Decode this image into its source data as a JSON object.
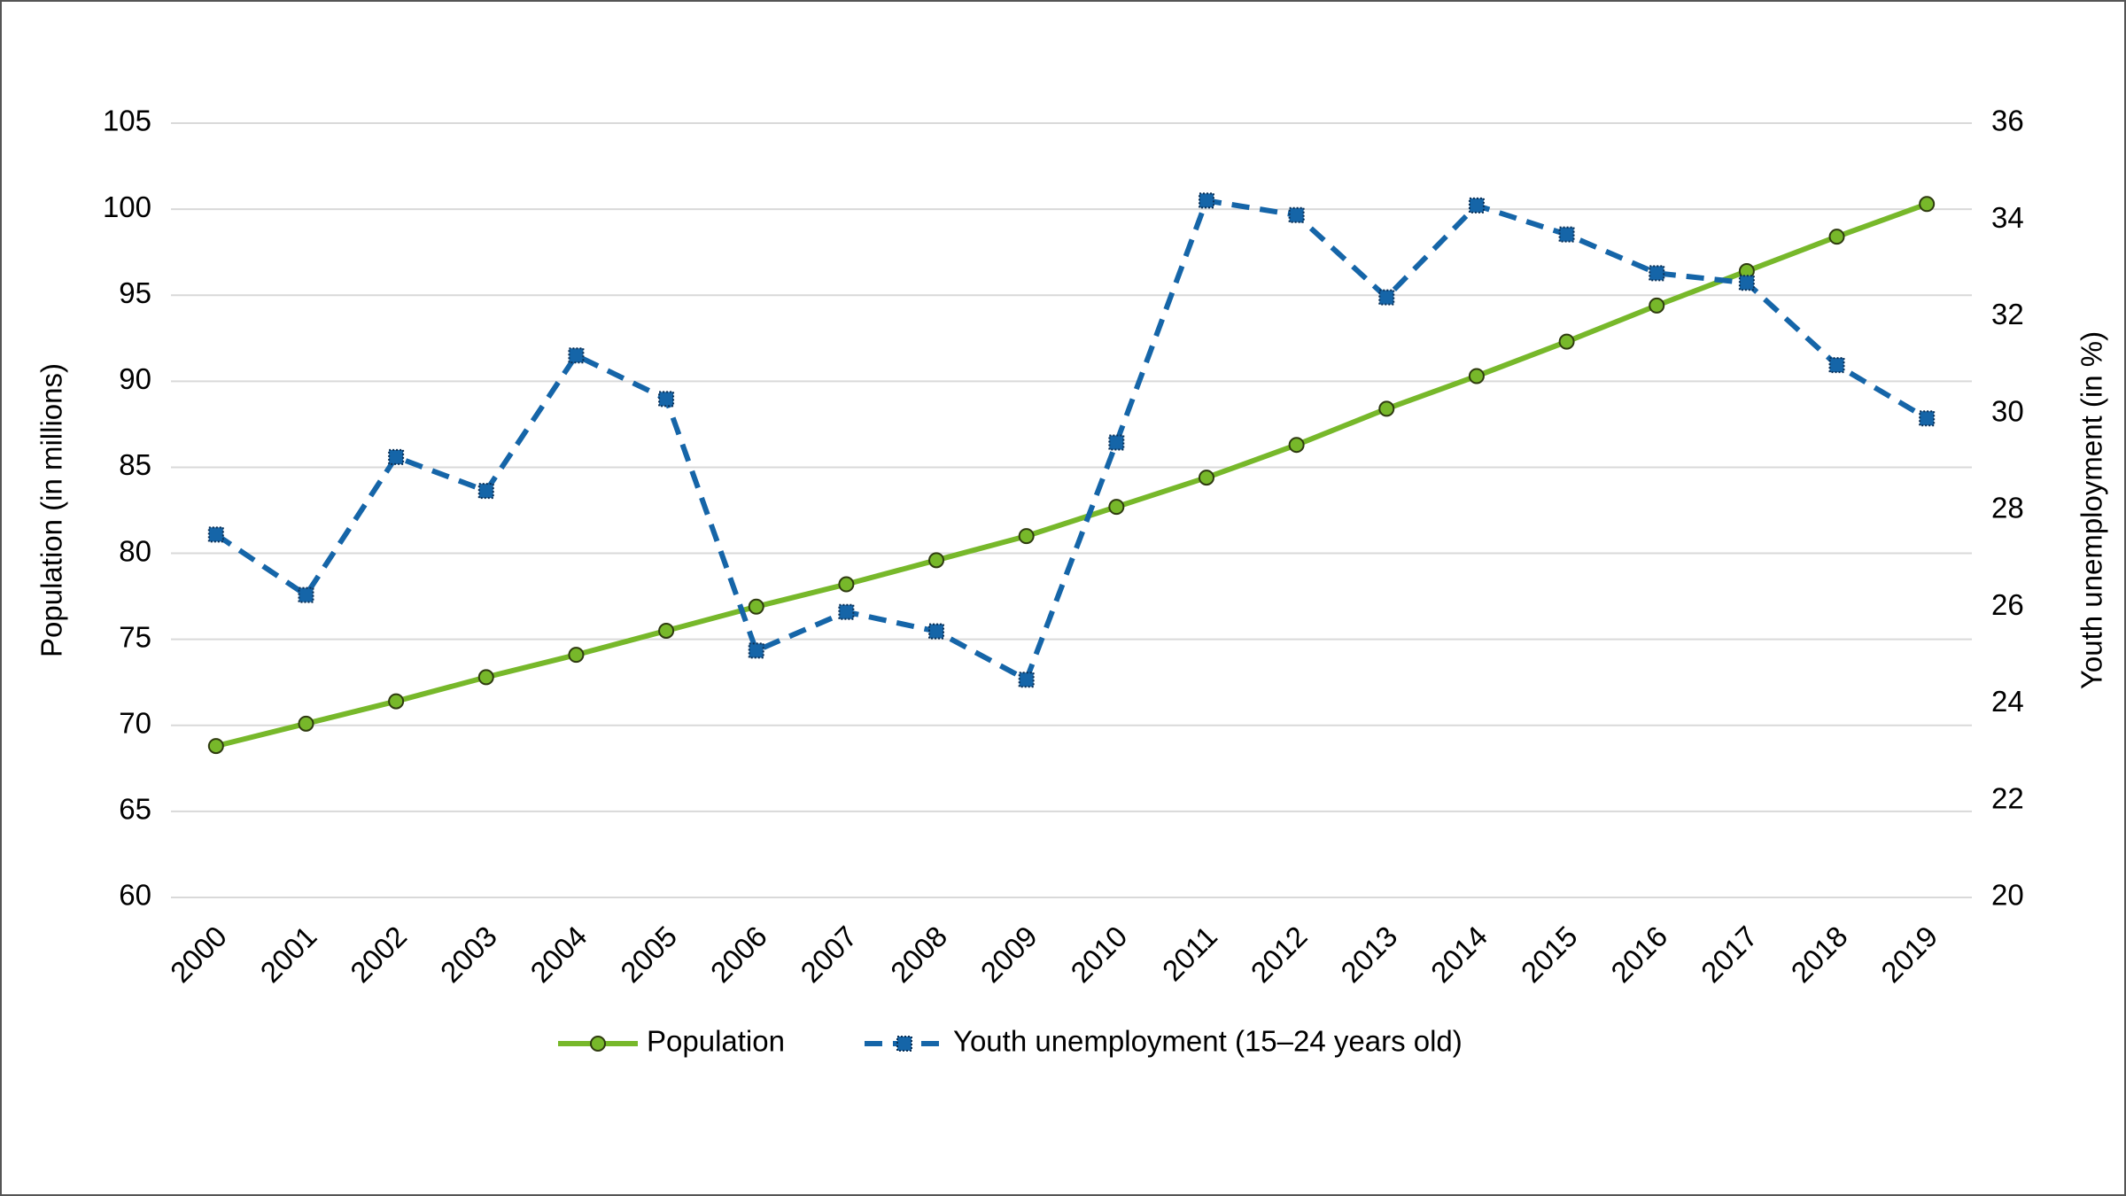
{
  "chart_data": {
    "type": "line",
    "categories": [
      "2000",
      "2001",
      "2002",
      "2003",
      "2004",
      "2005",
      "2006",
      "2007",
      "2008",
      "2009",
      "2010",
      "2011",
      "2012",
      "2013",
      "2014",
      "2015",
      "2016",
      "2017",
      "2018",
      "2019"
    ],
    "series": [
      {
        "name": "Population",
        "color": "#77b82a",
        "marker": "circle",
        "dash": false,
        "values": [
          68.8,
          70.1,
          71.4,
          72.8,
          74.1,
          75.5,
          76.9,
          78.2,
          79.6,
          81.0,
          82.7,
          84.4,
          86.3,
          88.4,
          90.3,
          92.3,
          94.4,
          96.4,
          98.4,
          100.3
        ]
      },
      {
        "name": "Youth unemployment (15–24 years old)",
        "color": "#1565a8",
        "marker": "square",
        "dash": true,
        "axis": "y2",
        "values": [
          27.5,
          26.25,
          29.1,
          28.4,
          31.2,
          30.3,
          25.1,
          25.9,
          25.5,
          24.5,
          29.4,
          34.4,
          34.1,
          32.4,
          34.3,
          33.7,
          32.9,
          32.7,
          31.0,
          29.9
        ]
      }
    ],
    "ylabel": "Population (in millions)",
    "y2label": "Youth unemployment (in %)",
    "ylim": [
      60,
      105
    ],
    "yticks": [
      60,
      65,
      70,
      75,
      80,
      85,
      90,
      95,
      100,
      105
    ],
    "y2lim": [
      20,
      36
    ],
    "y2ticks": [
      20,
      22,
      24,
      26,
      28,
      30,
      32,
      34,
      36
    ],
    "grid": true,
    "legend": "bottom"
  }
}
